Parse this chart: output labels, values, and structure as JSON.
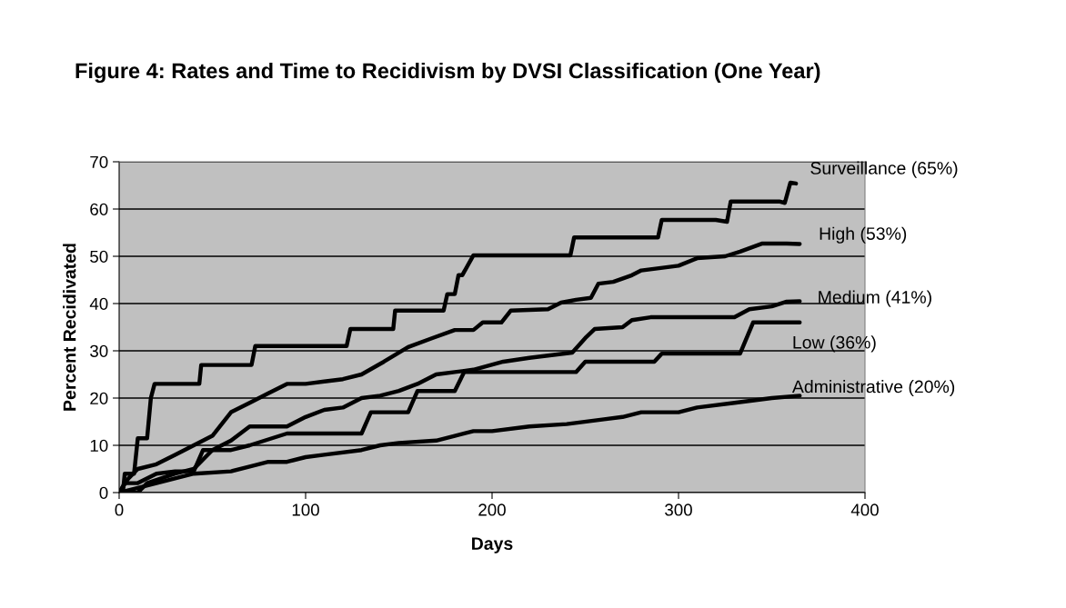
{
  "chart_data": {
    "type": "line",
    "title": "Figure 4: Rates and Time to Recidivism by DVSI Classification (One Year)",
    "xlabel": "Days",
    "ylabel": "Percent Recidivated",
    "xlim": [
      0,
      400
    ],
    "xticks": [
      0,
      100,
      200,
      300,
      400
    ],
    "ylim": [
      0,
      70
    ],
    "yticks": [
      0,
      10,
      20,
      30,
      40,
      50,
      60,
      70
    ],
    "grid": "y",
    "legend": false,
    "series": [
      {
        "name": "Surveillance (65%)",
        "color": "#000000",
        "x": [
          0,
          2,
          3,
          8,
          10,
          15,
          17,
          19,
          43,
          44,
          71,
          73,
          122,
          124,
          147,
          148,
          174,
          176,
          180,
          182,
          184,
          190,
          242,
          244,
          289,
          291,
          320,
          326,
          328,
          354,
          357,
          360,
          363
        ],
        "values": [
          0,
          0,
          4,
          4,
          11.5,
          11.5,
          20,
          23,
          23,
          27,
          27,
          31,
          31,
          34.6,
          34.6,
          38.5,
          38.5,
          42,
          42,
          46,
          46,
          50.2,
          50.2,
          54,
          54,
          57.7,
          57.7,
          57.3,
          61.6,
          61.6,
          61.3,
          65.6,
          65.4
        ]
      },
      {
        "name": "High (53%)",
        "color": "#000000",
        "x": [
          0,
          5,
          10,
          20,
          30,
          40,
          50,
          60,
          70,
          80,
          90,
          100,
          110,
          120,
          130,
          142,
          155,
          168,
          180,
          190,
          195,
          205,
          210,
          230,
          237,
          245,
          253,
          257,
          265,
          275,
          280,
          300,
          310,
          325,
          333,
          345,
          358,
          365
        ],
        "values": [
          0,
          3,
          5,
          6,
          8,
          10,
          12,
          17,
          19,
          21,
          23,
          23,
          23.5,
          24,
          25,
          27.7,
          30.8,
          32.7,
          34.4,
          34.4,
          36,
          36,
          38.5,
          38.8,
          40.2,
          40.8,
          41.2,
          44.2,
          44.6,
          46,
          47,
          48,
          49.6,
          50,
          51,
          52.7,
          52.7,
          52.6
        ]
      },
      {
        "name": "Medium (41%)",
        "color": "#000000",
        "x": [
          0,
          10,
          15,
          30,
          40,
          50,
          60,
          70,
          90,
          100,
          110,
          120,
          130,
          140,
          150,
          160,
          170,
          180,
          190,
          206,
          220,
          243,
          250,
          255,
          270,
          275,
          285,
          330,
          338,
          350,
          358,
          365
        ],
        "values": [
          0,
          0,
          2,
          4,
          5,
          9,
          11,
          14,
          14,
          16,
          17.5,
          18,
          20,
          20.5,
          21.5,
          23,
          25,
          25.5,
          26,
          27.7,
          28.5,
          29.6,
          32.7,
          34.6,
          35,
          36.5,
          37.1,
          37.1,
          38.8,
          39.4,
          40.4,
          40.5
        ]
      },
      {
        "name": "Low (36%)",
        "color": "#000000",
        "x": [
          0,
          3,
          10,
          20,
          30,
          40,
          45,
          60,
          70,
          90,
          130,
          135,
          155,
          160,
          180,
          185,
          245,
          250,
          287,
          291,
          333,
          340,
          365
        ],
        "values": [
          0,
          2,
          2,
          4,
          4.5,
          4.5,
          9,
          9,
          10,
          12.5,
          12.5,
          17,
          17,
          21.5,
          21.5,
          25.5,
          25.5,
          27.7,
          27.7,
          29.4,
          29.4,
          36,
          36
        ]
      },
      {
        "name": "Administrative (20%)",
        "color": "#000000",
        "x": [
          0,
          10,
          20,
          30,
          40,
          60,
          70,
          80,
          90,
          100,
          110,
          130,
          140,
          150,
          170,
          180,
          190,
          200,
          220,
          240,
          260,
          270,
          280,
          300,
          310,
          330,
          350,
          365
        ],
        "values": [
          0,
          1,
          2,
          3,
          4,
          4.5,
          5.5,
          6.5,
          6.5,
          7.5,
          8,
          9,
          10,
          10.5,
          11,
          12,
          13,
          13,
          14,
          14.5,
          15.5,
          16,
          17,
          17,
          18,
          19,
          20,
          20.5
        ]
      }
    ]
  }
}
